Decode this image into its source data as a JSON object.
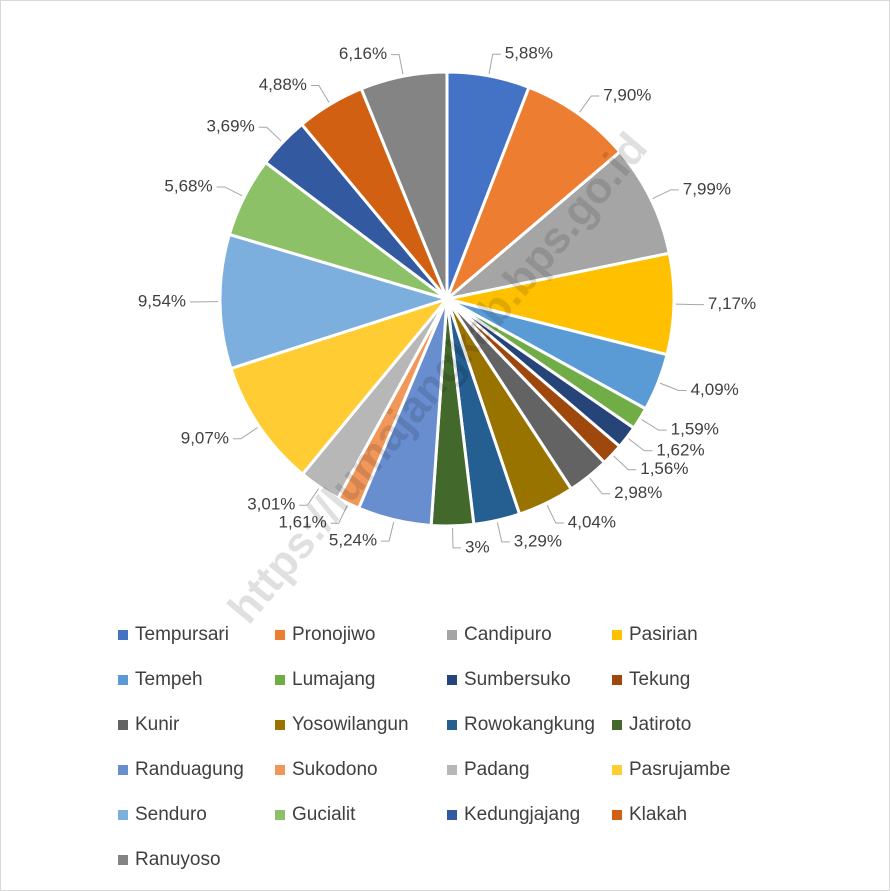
{
  "chart_data": {
    "type": "pie",
    "categories": [
      "Tempursari",
      "Pronojiwo",
      "Candipuro",
      "Pasirian",
      "Tempeh",
      "Lumajang",
      "Sumbersuko",
      "Tekung",
      "Kunir",
      "Yosowilangun",
      "Rowokangkung",
      "Jatiroto",
      "Randuagung",
      "Sukodono",
      "Padang",
      "Pasrujambe",
      "Senduro",
      "Gucialit",
      "Kedungjajang",
      "Klakah",
      "Ranuyoso"
    ],
    "values": [
      5.88,
      7.9,
      7.99,
      7.17,
      4.09,
      1.59,
      1.62,
      1.56,
      2.98,
      4.04,
      3.29,
      3,
      5.24,
      1.61,
      3.01,
      9.07,
      9.54,
      5.68,
      3.69,
      4.88,
      6.16
    ],
    "value_labels": [
      "5,88%",
      "7,90%",
      "7,99%",
      "7,17%",
      "4,09%",
      "1,59%",
      "1,62%",
      "1,56%",
      "2,98%",
      "4,04%",
      "3,29%",
      "3%",
      "5,24%",
      "1,61%",
      "3,01%",
      "9,07%",
      "9,54%",
      "5,68%",
      "3,69%",
      "4,88%",
      "6,16%"
    ],
    "colors": [
      "#4472C4",
      "#ED7D31",
      "#A5A5A5",
      "#FFC000",
      "#5B9BD5",
      "#70AD47",
      "#264478",
      "#9E480E",
      "#636363",
      "#997300",
      "#255E91",
      "#43682B",
      "#698ED0",
      "#F1975A",
      "#B7B7B7",
      "#FFCD33",
      "#7CAFDD",
      "#8CC168",
      "#335AA1",
      "#D26012",
      "#848484"
    ],
    "watermark": "https://lumajangkab.bps.go.id"
  }
}
